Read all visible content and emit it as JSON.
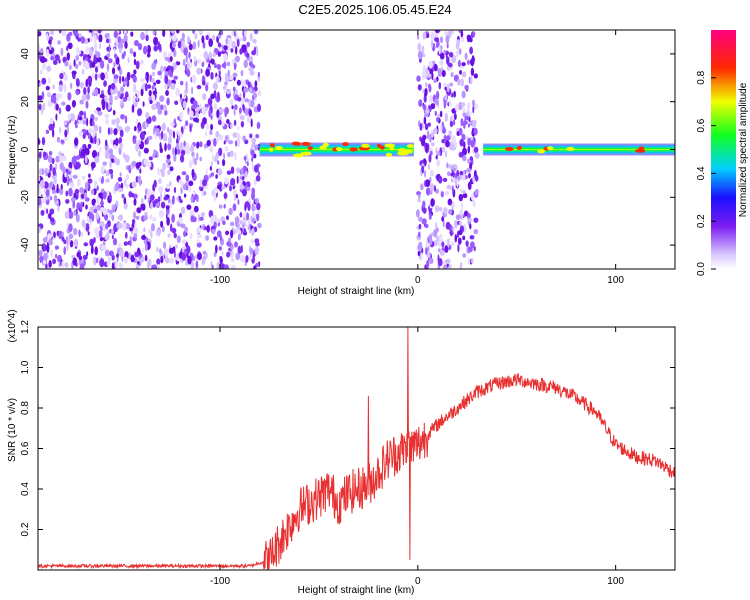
{
  "chart_data": [
    {
      "type": "heatmap",
      "title": "C2E5.2025.106.05.45.E24",
      "xlabel": "Height of straight line (km)",
      "ylabel": "Frequency (Hz)",
      "xlim": [
        -192,
        130
      ],
      "ylim": [
        -50,
        50
      ],
      "x_ticks": [
        -100,
        0,
        100
      ],
      "y_ticks": [
        -40,
        -20,
        0,
        20,
        40
      ],
      "colorbar": {
        "label": "Normalized spectral amplitude",
        "range": [
          0,
          1
        ],
        "ticks": [
          0.0,
          0.2,
          0.4,
          0.6,
          0.8
        ],
        "colormap": "rainbow (white-violet-blue-cyan-green-yellow-red-magenta)"
      },
      "regions": [
        {
          "x": [
            -192,
            -80
          ],
          "pattern": "diffuse low-amplitude noise"
        },
        {
          "x": [
            -80,
            -2
          ],
          "pattern": "narrow band near 0 Hz with high-amplitude spots"
        },
        {
          "x": [
            0,
            30
          ],
          "pattern": "diffuse low-amplitude noise"
        },
        {
          "x": [
            33,
            130
          ],
          "pattern": "strong narrow band near 0 Hz"
        }
      ]
    },
    {
      "type": "line",
      "title": "",
      "xlabel": "Height of straight line (km)",
      "ylabel": "SNR (10 * v/v)",
      "y_multiplier": "(x10^4)",
      "xlim": [
        -192,
        130
      ],
      "ylim": [
        0,
        1.2
      ],
      "x_ticks": [
        -100,
        0,
        100
      ],
      "y_ticks": [
        0.2,
        0.4,
        0.6,
        0.8,
        1.0,
        1.2
      ],
      "series": [
        {
          "color": "#e83030",
          "x": [
            -192,
            -150,
            -100,
            -85,
            -75,
            -70,
            -65,
            -60,
            -55,
            -50,
            -45,
            -40,
            -35,
            -30,
            -25,
            -20,
            -15,
            -10,
            -5,
            0,
            10,
            20,
            30,
            40,
            50,
            60,
            70,
            80,
            90,
            95,
            100,
            110,
            120,
            130
          ],
          "y": [
            0.02,
            0.02,
            0.02,
            0.02,
            0.05,
            0.14,
            0.22,
            0.3,
            0.33,
            0.36,
            0.4,
            0.33,
            0.38,
            0.4,
            0.42,
            0.48,
            0.55,
            0.58,
            0.6,
            0.62,
            0.72,
            0.8,
            0.88,
            0.92,
            0.94,
            0.92,
            0.9,
            0.85,
            0.78,
            0.7,
            0.62,
            0.56,
            0.54,
            0.48
          ]
        }
      ],
      "spikes": [
        {
          "x": -5,
          "y": 1.2
        },
        {
          "x": -4,
          "y": 0.05
        },
        {
          "x": -25,
          "y": 0.86
        }
      ]
    }
  ]
}
